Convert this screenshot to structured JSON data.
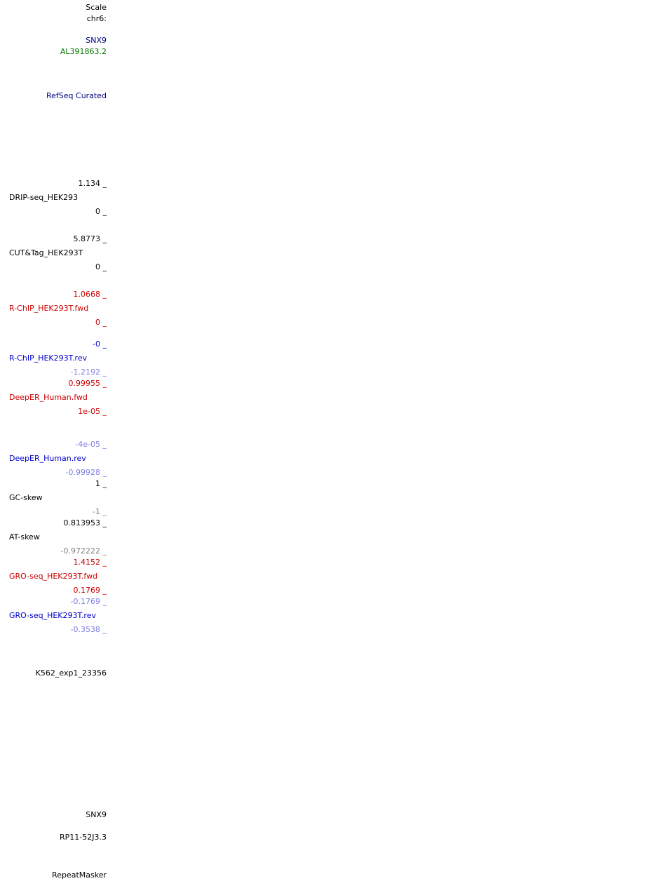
{
  "header": {
    "scale": "Scale",
    "chrom": "chr6:"
  },
  "gene_labels": {
    "snx9": "SNX9",
    "al391863": "AL391863.2"
  },
  "refseq": "RefSeq Curated",
  "tracks": {
    "drip": {
      "max": "1.134 _",
      "name": "DRIP-seq_HEK293",
      "min": "0 _"
    },
    "cuttag": {
      "max": "5.8773 _",
      "name": "CUT&Tag_HEK293T",
      "min": "0 _"
    },
    "rchip_fwd": {
      "max": "1.0668 _",
      "name": "R-ChIP_HEK293T.fwd",
      "min": "0 _"
    },
    "rchip_rev": {
      "max": "-0 _",
      "name": "R-ChIP_HEK293T.rev",
      "min": "-1.2192 _"
    },
    "deeper_fwd": {
      "max": "0.99955 _",
      "name": "DeepER_Human.fwd",
      "min": "1e-05 _"
    },
    "deeper_rev": {
      "max": "-4e-05 _",
      "name": "DeepER_Human.rev",
      "min": "-0.99928 _"
    },
    "gc_skew": {
      "max": "1 _",
      "name": "GC-skew",
      "min": "-1 _"
    },
    "at_skew": {
      "max": "0.813953 _",
      "name": "AT-skew",
      "min": "-0.972222 _"
    },
    "gro_fwd": {
      "max": "1.4152 _",
      "name": "GRO-seq_HEK293T.fwd",
      "min": "0.1769 _"
    },
    "gro_rev": {
      "max": "-0.1769 _",
      "name": "GRO-seq_HEK293T.rev",
      "min": "-0.3538 _"
    }
  },
  "k562": "K562_exp1_23356",
  "bottom_genes": {
    "snx9": "SNX9",
    "rp11": "RP11-52J3.3"
  },
  "repeatmasker": "RepeatMasker",
  "colors": {
    "navy": "#000080",
    "green": "#007800",
    "red": "#cc0000",
    "blue": "#0000c8",
    "light_blue": "#7f7fe6",
    "grey": "#7f7f7f"
  }
}
